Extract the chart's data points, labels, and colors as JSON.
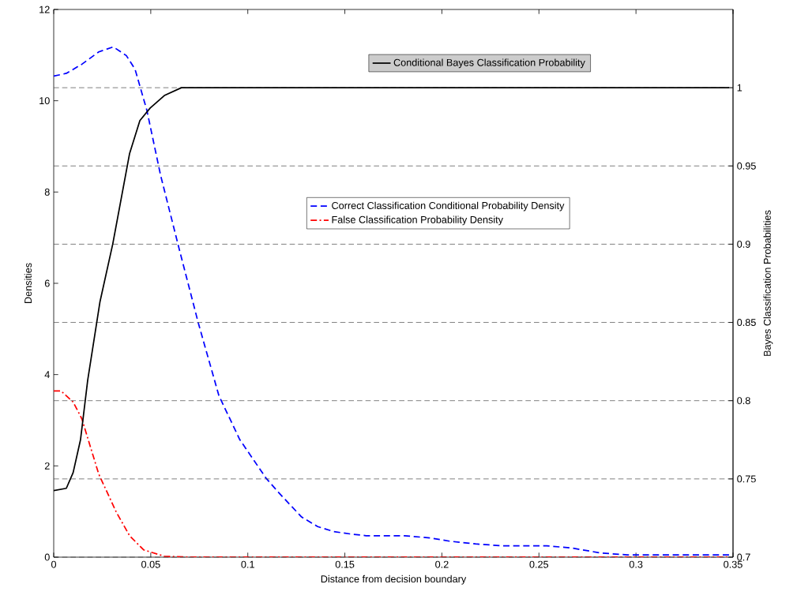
{
  "chart_data": {
    "type": "line",
    "xlabel": "Distance from decision boundary",
    "ylabel": "Densities",
    "y2label": "Bayes Classification Probabilities",
    "xlim": [
      0,
      0.35
    ],
    "xticks": [
      0,
      0.05,
      0.1,
      0.15,
      0.2,
      0.25,
      0.3,
      0.35
    ],
    "ylim": [
      0,
      12
    ],
    "yticks": [
      0,
      2,
      4,
      6,
      8,
      10,
      12
    ],
    "y2lim": [
      0.7,
      1.05
    ],
    "y2ticks": [
      0.7,
      0.75,
      0.8,
      0.85,
      0.9,
      0.95,
      1
    ],
    "grid": "y2",
    "legend": "top right",
    "series": [
      {
        "name": "Conditional Bayes Classification Probability",
        "color": "#000000",
        "axis": "y2",
        "line_style": "solid",
        "x": [
          0,
          0.0065,
          0.01,
          0.0138,
          0.0175,
          0.0238,
          0.0304,
          0.0391,
          0.0444,
          0.0497,
          0.057,
          0.0658,
          0.348
        ],
        "values": [
          0.7425,
          0.744,
          0.754,
          0.775,
          0.813,
          0.863,
          0.9,
          0.958,
          0.979,
          0.987,
          0.995,
          1.0,
          1.0
        ]
      },
      {
        "name": "Correct Classification Conditional Probability Density",
        "color": "#0000ff",
        "line_style": "dashed",
        "x": [
          0,
          0.0065,
          0.0145,
          0.0232,
          0.0307,
          0.0374,
          0.0419,
          0.048,
          0.0551,
          0.0649,
          0.0745,
          0.0851,
          0.0958,
          0.1094,
          0.116,
          0.1277,
          0.136,
          0.1443,
          0.1526,
          0.1609,
          0.1808,
          0.1942,
          0.204,
          0.2173,
          0.2307,
          0.254,
          0.267,
          0.282,
          0.2955,
          0.348
        ],
        "values": [
          10.54,
          10.6,
          10.8,
          11.07,
          11.18,
          10.99,
          10.69,
          9.79,
          8.36,
          6.71,
          5.13,
          3.54,
          2.58,
          1.73,
          1.41,
          0.88,
          0.67,
          0.56,
          0.51,
          0.47,
          0.47,
          0.42,
          0.35,
          0.29,
          0.25,
          0.25,
          0.2,
          0.09,
          0.05,
          0.05
        ]
      },
      {
        "name": "False Classification Probability Density",
        "color": "#ff0000",
        "line_style": "dashdot",
        "x": [
          0,
          0.0038,
          0.01,
          0.0145,
          0.0232,
          0.0322,
          0.0391,
          0.0463,
          0.057,
          0.07,
          0.348
        ],
        "values": [
          3.64,
          3.64,
          3.4,
          3.03,
          1.82,
          0.99,
          0.47,
          0.16,
          0.02,
          0,
          0
        ]
      }
    ]
  }
}
